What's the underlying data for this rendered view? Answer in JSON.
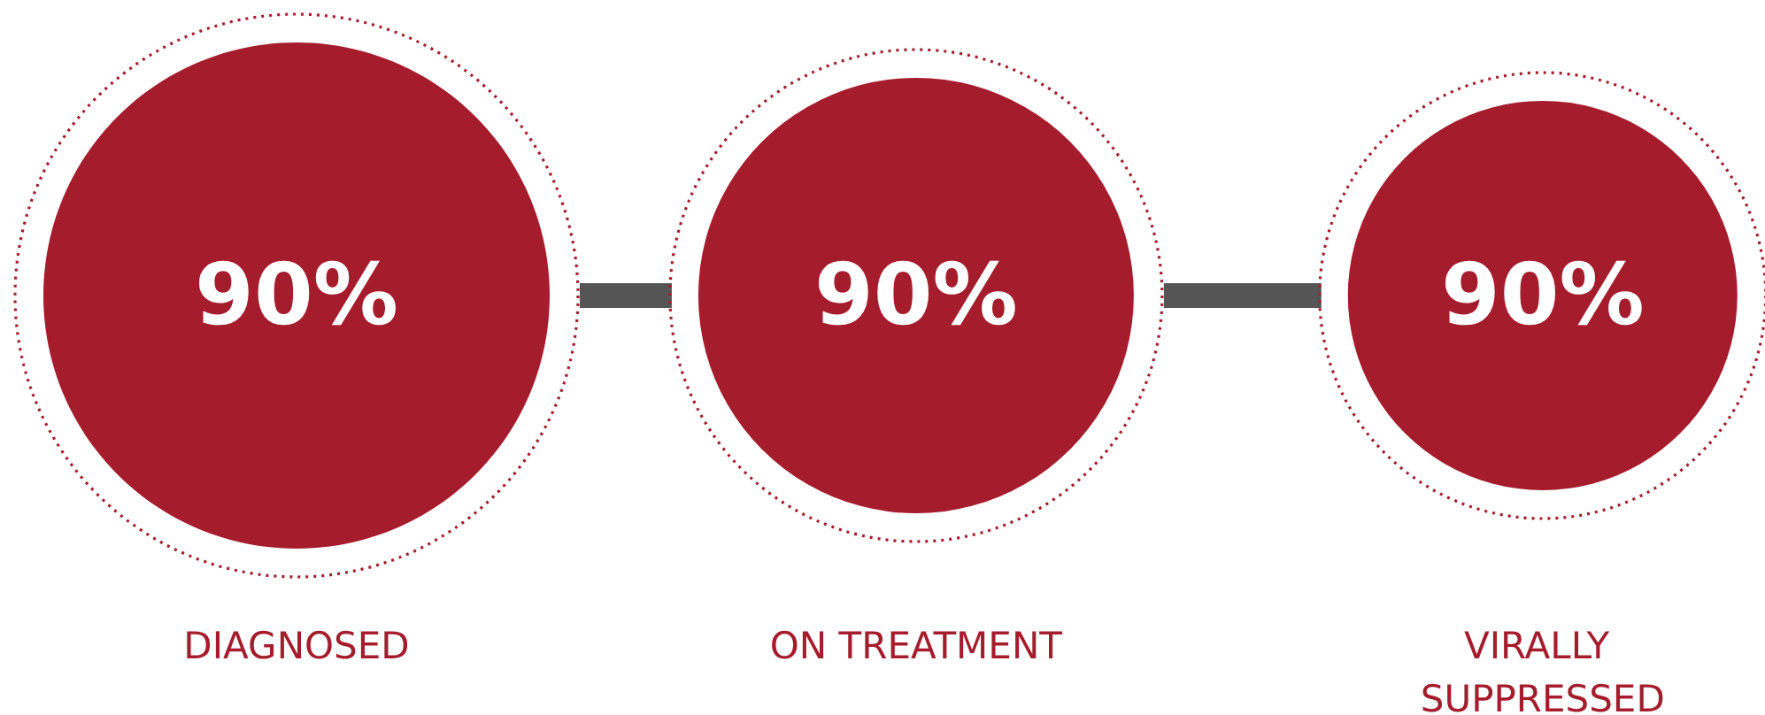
{
  "chart_data": {
    "type": "other",
    "categories": [
      "DIAGNOSED",
      "ON TREATMENT",
      "VIRALLY SUPPRESSED"
    ],
    "values": [
      90,
      90,
      90
    ],
    "value_labels": [
      "90%",
      "90%",
      "90%"
    ],
    "colors": [
      "#a51c2c",
      "#a51c2c",
      "#a51c2c"
    ],
    "data_labels": true
  }
}
